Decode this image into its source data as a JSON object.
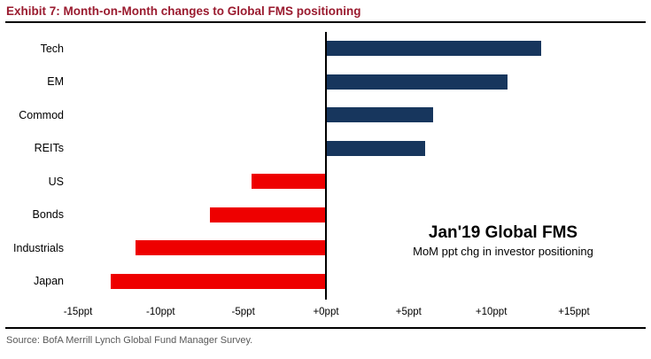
{
  "header": {
    "title": "Exhibit 7: Month-on-Month changes to Global FMS positioning",
    "title_color": "#9a1b2f"
  },
  "chart_data": {
    "type": "bar",
    "orientation": "horizontal",
    "title": "Exhibit 7: Month-on-Month changes to Global FMS positioning",
    "categories": [
      "Tech",
      "EM",
      "Commod",
      "REITs",
      "US",
      "Bonds",
      "Industrials",
      "Japan"
    ],
    "values": [
      13,
      11,
      6.5,
      6,
      -4.5,
      -7,
      -11.5,
      -13
    ],
    "xlim": [
      -15,
      15
    ],
    "x_ticks": [
      "-15ppt",
      "-10ppt",
      "-5ppt",
      "+0ppt",
      "+5ppt",
      "+10ppt",
      "+15ppt"
    ],
    "grid": "off",
    "positive_color": "#17365d",
    "negative_color": "#ee0000",
    "annotation_title": "Jan'19 Global FMS",
    "annotation_subtitle": "MoM ppt chg in investor positioning"
  },
  "footer": {
    "source": "Source:  BofA Merrill Lynch Global Fund Manager Survey."
  }
}
